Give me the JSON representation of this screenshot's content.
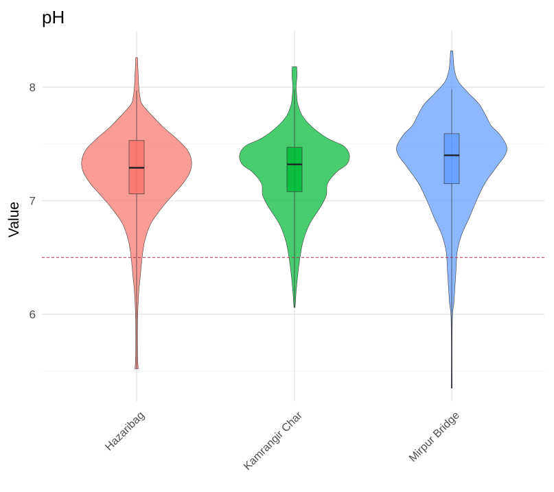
{
  "chart_data": {
    "type": "violin",
    "title": "pH",
    "xlabel": "",
    "ylabel": "Value",
    "ylim": [
      5.3,
      8.4
    ],
    "yticks": [
      6,
      7,
      8
    ],
    "grid": true,
    "legend": "none",
    "reference_line": {
      "y": 6.5,
      "color": "#a8324a",
      "style": "dashed"
    },
    "categories": [
      "Hazaribag",
      "Kamrangir Char",
      "Mirpur Bridge"
    ],
    "series": [
      {
        "category": "Hazaribag",
        "color": "#f8766d",
        "min": 5.52,
        "max": 8.26,
        "box": {
          "q1": 7.06,
          "median": 7.29,
          "q3": 7.53,
          "whisker_low": 5.52,
          "whisker_high": 7.97
        },
        "density": [
          [
            5.52,
            0.03
          ],
          [
            5.6,
            0.02
          ],
          [
            5.8,
            0.015
          ],
          [
            6.0,
            0.02
          ],
          [
            6.2,
            0.04
          ],
          [
            6.35,
            0.07
          ],
          [
            6.5,
            0.1
          ],
          [
            6.65,
            0.15
          ],
          [
            6.8,
            0.26
          ],
          [
            6.95,
            0.48
          ],
          [
            7.05,
            0.66
          ],
          [
            7.15,
            0.84
          ],
          [
            7.25,
            0.97
          ],
          [
            7.35,
            1.0
          ],
          [
            7.45,
            0.92
          ],
          [
            7.55,
            0.72
          ],
          [
            7.65,
            0.48
          ],
          [
            7.75,
            0.28
          ],
          [
            7.85,
            0.1
          ],
          [
            7.92,
            0.06
          ],
          [
            8.0,
            0.04
          ],
          [
            8.1,
            0.03
          ],
          [
            8.2,
            0.02
          ],
          [
            8.26,
            0.015
          ]
        ]
      },
      {
        "category": "Kamrangir Char",
        "color": "#00ba38",
        "min": 6.06,
        "max": 8.18,
        "box": {
          "q1": 7.08,
          "median": 7.32,
          "q3": 7.47,
          "whisker_low": 6.06,
          "whisker_high": 7.98
        },
        "density": [
          [
            6.06,
            0.01
          ],
          [
            6.2,
            0.03
          ],
          [
            6.35,
            0.06
          ],
          [
            6.5,
            0.1
          ],
          [
            6.65,
            0.16
          ],
          [
            6.8,
            0.28
          ],
          [
            6.95,
            0.48
          ],
          [
            7.05,
            0.58
          ],
          [
            7.15,
            0.6
          ],
          [
            7.25,
            0.76
          ],
          [
            7.32,
            0.95
          ],
          [
            7.4,
            1.0
          ],
          [
            7.48,
            0.9
          ],
          [
            7.55,
            0.6
          ],
          [
            7.65,
            0.32
          ],
          [
            7.75,
            0.14
          ],
          [
            7.85,
            0.06
          ],
          [
            7.93,
            0.04
          ],
          [
            8.0,
            0.03
          ],
          [
            8.1,
            0.045
          ],
          [
            8.18,
            0.04
          ]
        ]
      },
      {
        "category": "Mirpur Bridge",
        "color": "#619cff",
        "min": 5.35,
        "max": 8.32,
        "box": {
          "q1": 7.15,
          "median": 7.4,
          "q3": 7.59,
          "whisker_low": 5.35,
          "whisker_high": 7.98
        },
        "density": [
          [
            5.35,
            0.01
          ],
          [
            5.5,
            0.008
          ],
          [
            5.8,
            0.008
          ],
          [
            6.0,
            0.015
          ],
          [
            6.1,
            0.04
          ],
          [
            6.25,
            0.06
          ],
          [
            6.4,
            0.08
          ],
          [
            6.55,
            0.1
          ],
          [
            6.7,
            0.18
          ],
          [
            6.85,
            0.32
          ],
          [
            7.0,
            0.45
          ],
          [
            7.15,
            0.6
          ],
          [
            7.3,
            0.82
          ],
          [
            7.4,
            0.97
          ],
          [
            7.48,
            1.0
          ],
          [
            7.58,
            0.88
          ],
          [
            7.66,
            0.72
          ],
          [
            7.75,
            0.62
          ],
          [
            7.85,
            0.5
          ],
          [
            7.95,
            0.3
          ],
          [
            8.05,
            0.12
          ],
          [
            8.15,
            0.05
          ],
          [
            8.25,
            0.03
          ],
          [
            8.32,
            0.02
          ]
        ]
      }
    ]
  }
}
